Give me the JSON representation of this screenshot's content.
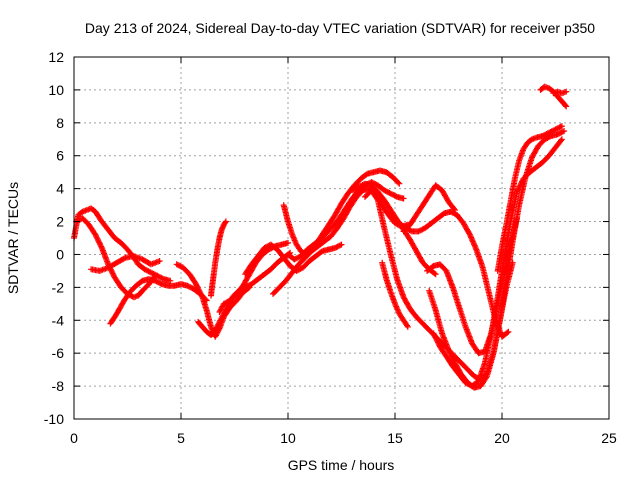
{
  "chart_data": {
    "type": "scatter",
    "title": "Day 213 of 2024, Sidereal Day-to-day VTEC variation (SDTVAR) for receiver p350",
    "xlabel": "GPS time / hours",
    "ylabel": "SDTVAR / TECUs",
    "xlim": [
      0,
      25
    ],
    "ylim": [
      -10,
      12
    ],
    "xticks": [
      0,
      5,
      10,
      15,
      20,
      25
    ],
    "yticks": [
      -10,
      -8,
      -6,
      -4,
      -2,
      0,
      2,
      4,
      6,
      8,
      10,
      12
    ],
    "grid": true,
    "legend": "none",
    "marker": "plus",
    "color": "#ff0000",
    "series": [
      {
        "x": [
          0.0,
          0.2,
          0.4,
          0.6,
          0.8,
          1.0,
          1.3,
          1.6,
          1.9,
          2.2,
          2.5,
          2.8,
          3.0,
          3.3,
          3.6,
          3.9,
          4.2,
          4.5
        ],
        "y": [
          1.0,
          2.4,
          2.6,
          2.7,
          2.8,
          2.6,
          2.0,
          1.5,
          1.0,
          0.7,
          0.3,
          -0.2,
          -0.6,
          -0.9,
          -1.1,
          -1.3,
          -1.5,
          -1.6
        ]
      },
      {
        "x": [
          0.1,
          0.4,
          0.7,
          1.0,
          1.3,
          1.6,
          1.9,
          2.2,
          2.5,
          2.8,
          3.0,
          3.2,
          3.5,
          3.8
        ],
        "y": [
          2.0,
          2.2,
          1.8,
          1.2,
          0.4,
          -0.6,
          -1.4,
          -2.0,
          -2.4,
          -2.6,
          -2.5,
          -2.2,
          -1.8,
          -1.3
        ]
      },
      {
        "x": [
          0.8,
          1.2,
          1.6,
          2.0,
          2.4,
          2.8,
          3.2,
          3.6,
          4.0
        ],
        "y": [
          -0.9,
          -1.0,
          -0.8,
          -0.5,
          -0.2,
          -0.1,
          -0.3,
          -0.6,
          -0.4
        ]
      },
      {
        "x": [
          1.7,
          2.0,
          2.3,
          2.6,
          2.9,
          3.2,
          3.5,
          3.8,
          4.1,
          4.4,
          4.7,
          5.0,
          5.3,
          5.6,
          5.9,
          6.2
        ],
        "y": [
          -4.2,
          -3.6,
          -2.9,
          -2.3,
          -1.9,
          -1.6,
          -1.5,
          -1.6,
          -1.8,
          -1.9,
          -1.9,
          -1.8,
          -1.9,
          -2.1,
          -2.4,
          -2.8
        ]
      },
      {
        "x": [
          4.8,
          5.1,
          5.4,
          5.7,
          6.0,
          6.2,
          6.4,
          6.6,
          6.8,
          7.0,
          7.3,
          7.6,
          7.9,
          8.2
        ],
        "y": [
          -0.6,
          -0.8,
          -1.2,
          -1.8,
          -2.6,
          -3.4,
          -4.4,
          -5.0,
          -4.5,
          -3.8,
          -3.2,
          -2.8,
          -2.3,
          -2.0
        ]
      },
      {
        "x": [
          5.8,
          6.0,
          6.2,
          6.4,
          6.6,
          6.8,
          7.0,
          7.2,
          7.4,
          7.7,
          8.0,
          8.3,
          8.6,
          8.9,
          9.2,
          9.5,
          9.8,
          10.1
        ],
        "y": [
          -4.1,
          -4.4,
          -4.7,
          -4.9,
          -4.6,
          -4.1,
          -3.6,
          -3.1,
          -2.6,
          -2.2,
          -2.0,
          -1.8,
          -1.5,
          -1.2,
          -0.9,
          -0.5,
          -0.2,
          0.1
        ]
      },
      {
        "x": [
          6.4,
          6.5,
          6.6,
          6.7,
          6.8,
          6.9,
          7.0,
          7.1
        ],
        "y": [
          -2.5,
          -1.5,
          -0.5,
          0.3,
          1.0,
          1.5,
          1.8,
          2.0
        ]
      },
      {
        "x": [
          6.8,
          7.0,
          7.3,
          7.6,
          7.9,
          8.2,
          8.5,
          8.8,
          9.1,
          9.4,
          9.7,
          10.0
        ],
        "y": [
          -3.5,
          -3.0,
          -2.8,
          -2.4,
          -1.9,
          -1.2,
          -0.5,
          0.0,
          0.3,
          0.5,
          0.6,
          0.7
        ]
      },
      {
        "x": [
          8.0,
          8.3,
          8.6,
          8.9,
          9.2,
          9.5,
          9.8,
          10.1,
          10.4,
          10.7,
          11.0,
          11.3,
          11.6,
          11.9,
          12.2,
          12.5
        ],
        "y": [
          -1.2,
          -0.6,
          -0.1,
          0.4,
          0.6,
          0.3,
          -0.2,
          -0.7,
          -1.0,
          -0.8,
          -0.4,
          -0.1,
          0.2,
          0.3,
          0.4,
          0.6
        ]
      },
      {
        "x": [
          9.3,
          9.6,
          9.9,
          10.2,
          10.5,
          10.8,
          11.1,
          11.4,
          11.7,
          12.0,
          12.3,
          12.6,
          12.9,
          13.2,
          13.5,
          13.8,
          14.1,
          14.4,
          14.7,
          15.0,
          15.3,
          15.6
        ],
        "y": [
          -2.4,
          -2.0,
          -1.6,
          -1.1,
          -0.6,
          -0.2,
          0.2,
          0.5,
          0.8,
          1.1,
          1.6,
          2.2,
          2.9,
          3.5,
          3.9,
          4.0,
          3.6,
          3.0,
          2.4,
          1.9,
          1.7,
          1.8
        ]
      },
      {
        "x": [
          10.0,
          10.3,
          10.6,
          10.9,
          11.2,
          11.5,
          11.8,
          12.1,
          12.4,
          12.7,
          13.0,
          13.3,
          13.6,
          13.9,
          14.2,
          14.5,
          14.8,
          15.1,
          15.4
        ],
        "y": [
          0.0,
          -0.3,
          -0.1,
          0.3,
          0.6,
          0.9,
          1.3,
          1.7,
          2.2,
          2.8,
          3.4,
          3.9,
          4.2,
          4.4,
          4.2,
          3.9,
          3.7,
          3.5,
          3.4
        ]
      },
      {
        "x": [
          9.8,
          10.0,
          10.2,
          10.4,
          10.6,
          10.8,
          11.0,
          11.3,
          11.6,
          11.9,
          12.2,
          12.5,
          12.8,
          13.1,
          13.4,
          13.7,
          14.0,
          14.3,
          14.6,
          14.9,
          15.2
        ],
        "y": [
          3.0,
          2.0,
          1.2,
          0.6,
          0.2,
          0.0,
          0.2,
          0.6,
          1.2,
          1.8,
          2.4,
          3.1,
          3.7,
          4.2,
          4.6,
          4.9,
          5.0,
          5.1,
          5.0,
          4.7,
          4.3
        ]
      },
      {
        "x": [
          13.0,
          13.3,
          13.6,
          13.9,
          14.2,
          14.5,
          14.8,
          15.1,
          15.4,
          15.7,
          16.0,
          16.3,
          16.6,
          16.9
        ],
        "y": [
          3.9,
          4.1,
          4.3,
          4.2,
          3.8,
          3.3,
          2.7,
          2.1,
          1.5,
          0.9,
          0.2,
          -0.5,
          -0.9,
          -1.2
        ]
      },
      {
        "x": [
          13.6,
          13.9,
          14.2,
          14.5,
          14.8,
          15.1,
          15.4,
          15.7,
          16.0,
          16.3,
          16.6,
          16.9,
          17.2,
          17.5,
          17.8,
          18.1,
          18.4,
          18.7,
          19.0,
          19.3,
          19.6,
          19.9,
          20.2,
          20.5
        ],
        "y": [
          3.5,
          3.9,
          3.3,
          1.6,
          0.0,
          -1.5,
          -2.6,
          -3.3,
          -3.8,
          -4.2,
          -4.6,
          -5.0,
          -5.4,
          -5.8,
          -6.2,
          -6.6,
          -7.0,
          -7.4,
          -7.6,
          -7.2,
          -6.0,
          -4.0,
          -2.0,
          -0.5
        ]
      },
      {
        "x": [
          14.4,
          14.6,
          14.8,
          15.0,
          15.2,
          15.4,
          15.6
        ],
        "y": [
          -0.5,
          -1.5,
          -2.3,
          -3.0,
          -3.6,
          -4.0,
          -4.4
        ]
      },
      {
        "x": [
          14.6,
          14.9,
          15.2,
          15.5,
          15.8,
          16.1,
          16.4,
          16.7,
          17.0,
          17.3,
          17.6,
          17.9,
          18.2,
          18.5,
          18.8,
          19.1,
          19.4,
          19.7,
          20.0,
          20.3
        ],
        "y": [
          2.6,
          2.2,
          1.9,
          1.6,
          1.4,
          1.4,
          1.6,
          1.9,
          2.2,
          2.5,
          2.6,
          2.4,
          1.9,
          1.2,
          0.3,
          -0.8,
          -2.4,
          -4.0,
          -5.0,
          -4.7
        ]
      },
      {
        "x": [
          15.4,
          15.7,
          16.0,
          16.3,
          16.6,
          16.9,
          17.2,
          17.5,
          17.8
        ],
        "y": [
          1.4,
          1.8,
          2.4,
          3.0,
          3.6,
          4.2,
          3.9,
          3.2,
          2.7
        ]
      },
      {
        "x": [
          16.5,
          16.8,
          17.1,
          17.4,
          17.7,
          18.0,
          18.3,
          18.6,
          18.9,
          19.2,
          19.5,
          19.8,
          20.1,
          20.4,
          20.7
        ],
        "y": [
          -1.0,
          -0.7,
          -0.6,
          -1.0,
          -2.0,
          -3.2,
          -4.4,
          -5.4,
          -6.0,
          -5.9,
          -4.8,
          -3.0,
          -1.2,
          0.6,
          2.2
        ]
      },
      {
        "x": [
          16.6,
          16.9,
          17.2,
          17.5,
          17.8,
          18.1,
          18.4,
          18.7,
          19.0,
          19.3,
          19.6,
          19.9,
          20.2,
          20.5,
          20.8,
          21.1,
          21.4,
          21.7,
          22.0,
          22.3,
          22.6,
          22.9
        ],
        "y": [
          -2.2,
          -3.4,
          -4.8,
          -5.8,
          -6.6,
          -7.3,
          -7.8,
          -8.1,
          -8.0,
          -7.4,
          -6.0,
          -4.0,
          -1.6,
          0.8,
          3.0,
          4.7,
          5.9,
          6.6,
          7.0,
          7.2,
          7.3,
          7.5
        ]
      },
      {
        "x": [
          16.8,
          17.1,
          17.4,
          17.7,
          18.0,
          18.3,
          18.6,
          18.9,
          19.2,
          19.5,
          19.8,
          20.1,
          20.4,
          20.7,
          21.0,
          21.3,
          21.6,
          21.9,
          22.2,
          22.5,
          22.8
        ],
        "y": [
          -4.8,
          -5.6,
          -6.2,
          -6.8,
          -7.3,
          -7.8,
          -8.0,
          -7.7,
          -6.6,
          -4.8,
          -2.6,
          -0.2,
          2.0,
          3.8,
          4.6,
          5.0,
          5.3,
          5.6,
          6.0,
          6.5,
          7.0
        ]
      },
      {
        "x": [
          19.8,
          20.0,
          20.2,
          20.4,
          20.6,
          20.8,
          21.0,
          21.2,
          21.4,
          21.6,
          21.9,
          22.2,
          22.5,
          22.8
        ],
        "y": [
          -1.0,
          0.5,
          1.8,
          3.2,
          4.6,
          5.7,
          6.4,
          6.8,
          7.0,
          7.1,
          7.2,
          7.4,
          7.6,
          7.8
        ]
      },
      {
        "x": [
          21.8,
          22.0,
          22.2,
          22.4,
          22.6,
          22.8,
          23.0
        ],
        "y": [
          10.0,
          10.2,
          10.1,
          9.9,
          9.6,
          9.3,
          9.0
        ]
      },
      {
        "x": [
          22.4,
          22.6,
          22.8,
          23.0
        ],
        "y": [
          9.8,
          9.9,
          9.8,
          9.9
        ]
      }
    ]
  }
}
